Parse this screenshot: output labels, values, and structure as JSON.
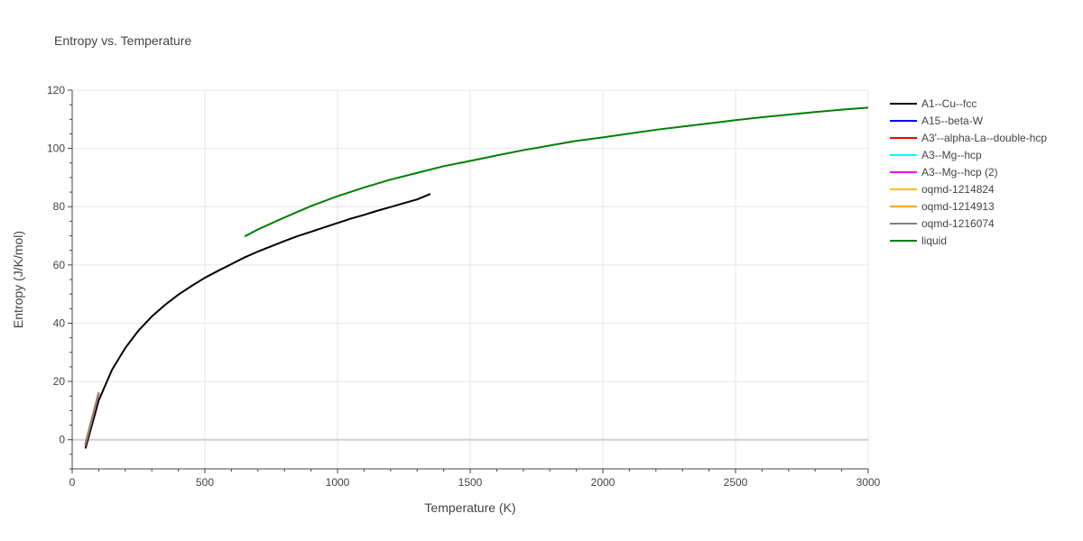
{
  "chart_data": {
    "type": "line",
    "title": "Entropy vs. Temperature",
    "xlabel": "Temperature (K)",
    "ylabel": "Entropy (J/K/mol)",
    "xlim": [
      0,
      3000
    ],
    "ylim": [
      -10,
      120
    ],
    "xticks": [
      0,
      500,
      1000,
      1500,
      2000,
      2500,
      3000
    ],
    "yticks": [
      0,
      20,
      40,
      60,
      80,
      100,
      120
    ],
    "grid": true,
    "legend_position": "right",
    "series": [
      {
        "name": "A1--Cu--fcc",
        "color": "#000000",
        "x": [
          50,
          100,
          150,
          200,
          250,
          300,
          350,
          400,
          450,
          500,
          550,
          600,
          650,
          700,
          750,
          800,
          850,
          900,
          950,
          1000,
          1050,
          1100,
          1150,
          1200,
          1250,
          1300,
          1350
        ],
        "y": [
          -3,
          13.5,
          24,
          31.5,
          37.5,
          42.3,
          46.3,
          49.8,
          52.8,
          55.6,
          58.0,
          60.3,
          62.6,
          64.6,
          66.4,
          68.2,
          69.9,
          71.4,
          72.9,
          74.4,
          75.9,
          77.2,
          78.6,
          79.9,
          81.2,
          82.5,
          84.4
        ]
      },
      {
        "name": "A15--beta-W",
        "color": "#0000ff",
        "x": [
          50,
          100
        ],
        "y": [
          -1.5,
          16
        ]
      },
      {
        "name": "A3'--alpha-La--double-hcp",
        "color": "#ff0000",
        "x": [
          50,
          100
        ],
        "y": [
          -1.8,
          15.8
        ]
      },
      {
        "name": "A3--Mg--hcp",
        "color": "#00ffff",
        "x": [
          50,
          100
        ],
        "y": [
          -1.6,
          16
        ]
      },
      {
        "name": "A3--Mg--hcp (2)",
        "color": "#ff00ff",
        "x": [
          50,
          100
        ],
        "y": [
          -1.7,
          15.9
        ]
      },
      {
        "name": "oqmd-1214824",
        "color": "#ffc000",
        "x": [
          50,
          100
        ],
        "y": [
          -1.2,
          16.2
        ]
      },
      {
        "name": "oqmd-1214913",
        "color": "#ffa500",
        "x": [
          50,
          100
        ],
        "y": [
          -1.0,
          16.4
        ]
      },
      {
        "name": "oqmd-1216074",
        "color": "#808080",
        "x": [
          50,
          100
        ],
        "y": [
          -1.4,
          16.1
        ]
      },
      {
        "name": "liquid",
        "color": "#008000",
        "x": [
          650,
          700,
          800,
          900,
          1000,
          1100,
          1200,
          1300,
          1400,
          1500,
          1600,
          1700,
          1800,
          1900,
          2000,
          2100,
          2200,
          2300,
          2400,
          2500,
          2600,
          2700,
          2800,
          2900,
          3000
        ],
        "y": [
          69.8,
          72.2,
          76.3,
          80.2,
          83.6,
          86.6,
          89.3,
          91.6,
          93.9,
          95.7,
          97.6,
          99.4,
          101.0,
          102.6,
          103.8,
          105.1,
          106.4,
          107.5,
          108.6,
          109.7,
          110.7,
          111.6,
          112.5,
          113.3,
          114.0
        ]
      }
    ]
  }
}
